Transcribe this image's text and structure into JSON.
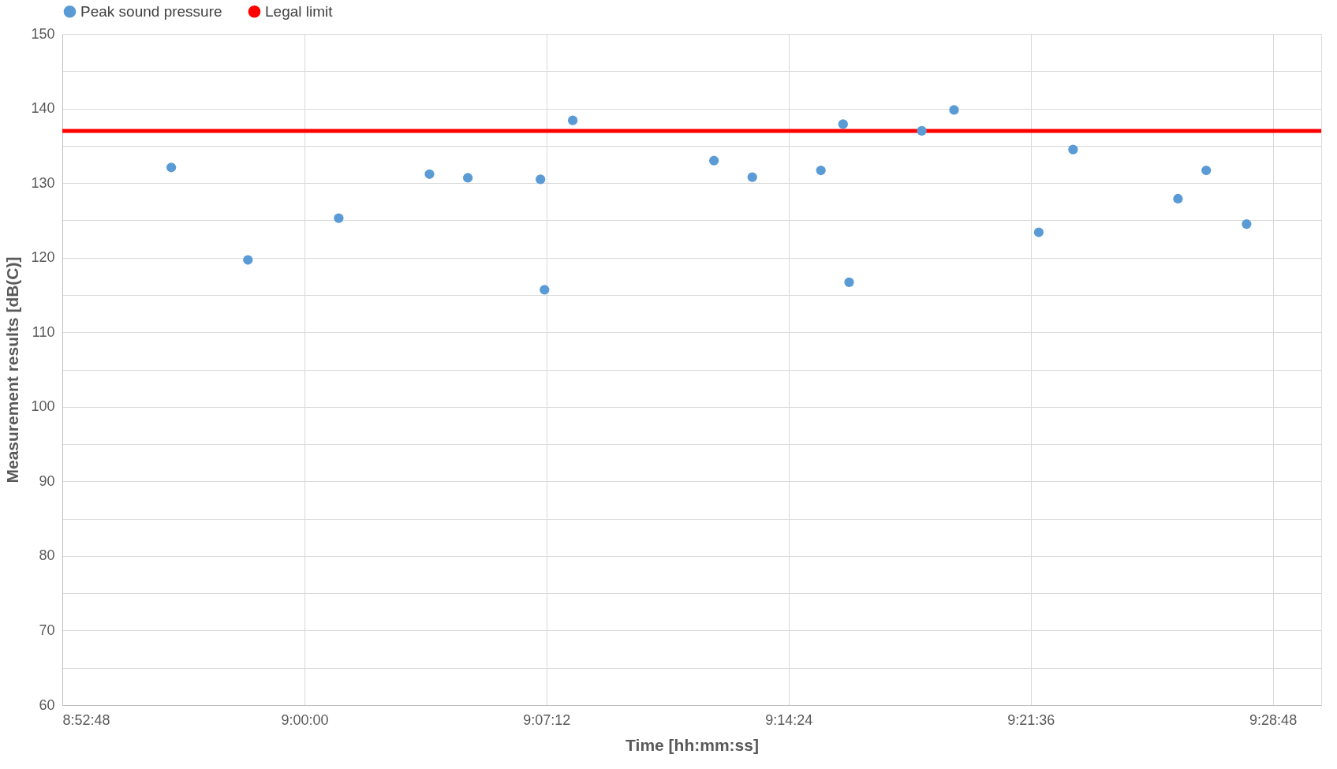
{
  "chart_data": {
    "type": "scatter",
    "xlabel": "Time [hh:mm:ss]",
    "ylabel": "Measurement results [dB(C)]",
    "xlim": [
      8.88,
      9.504
    ],
    "ylim": [
      60,
      150
    ],
    "xticks": [
      {
        "value": 8.88,
        "label": "8:52:48"
      },
      {
        "value": 9.0,
        "label": "9:00:00"
      },
      {
        "value": 9.12,
        "label": "9:07:12"
      },
      {
        "value": 9.24,
        "label": "9:14:24"
      },
      {
        "value": 9.36,
        "label": "9:21:36"
      },
      {
        "value": 9.48,
        "label": "9:28:48"
      }
    ],
    "yticks": [
      60,
      {
        "value": 65,
        "label": null
      },
      70,
      {
        "value": 75,
        "label": null
      },
      80,
      {
        "value": 85,
        "label": null
      },
      90,
      {
        "value": 95,
        "label": null
      },
      100,
      {
        "value": 105,
        "label": null
      },
      110,
      {
        "value": 115,
        "label": null
      },
      120,
      {
        "value": 125,
        "label": null
      },
      130,
      {
        "value": 135,
        "label": null
      },
      140,
      {
        "value": 145,
        "label": null
      },
      150
    ],
    "grid": true,
    "legend": "top",
    "series": [
      {
        "name": "Peak sound pressure",
        "marker": "circle",
        "color": "#5b9bd5",
        "x": [
          8.934,
          8.972,
          9.017,
          9.062,
          9.081,
          9.117,
          9.119,
          9.133,
          9.203,
          9.222,
          9.256,
          9.267,
          9.27,
          9.306,
          9.322,
          9.364,
          9.381,
          9.433,
          9.447,
          9.467
        ],
        "values": [
          132.1,
          119.7,
          125.3,
          131.2,
          130.7,
          130.5,
          115.7,
          138.4,
          133.0,
          130.8,
          131.7,
          137.9,
          116.7,
          137.0,
          139.8,
          123.4,
          134.5,
          127.9,
          131.7,
          124.5
        ]
      },
      {
        "name": "Legal limit",
        "type": "line",
        "color": "#ff0000",
        "x": [
          8.88,
          9.504
        ],
        "values": [
          137,
          137
        ]
      }
    ]
  }
}
